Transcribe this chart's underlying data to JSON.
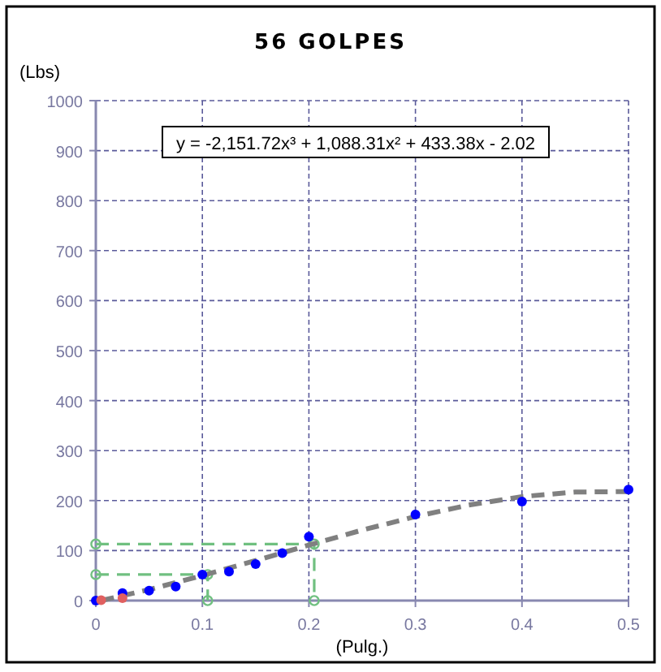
{
  "chart_data": {
    "type": "scatter",
    "title": "56 GOLPES",
    "xlabel": "(Pulg.)",
    "ylabel": "(Lbs)",
    "annotations": [
      "y = -2,151.72x³ + 1,088.31x² + 433.38x - 2.02"
    ],
    "xlim": [
      0,
      0.5
    ],
    "xticks": [
      0,
      0.1,
      0.2,
      0.3,
      0.4,
      0.5
    ],
    "ylim": [
      0,
      1000
    ],
    "yticks": [
      0,
      100,
      200,
      300,
      400,
      500,
      600,
      700,
      800,
      900,
      1000
    ],
    "grid": true,
    "series": [
      {
        "type": "line",
        "color": "#70c080",
        "line_style": "dashed",
        "marker": "circle",
        "x": [
          0,
          0.205,
          0.205
        ],
        "values": [
          113,
          113,
          0
        ]
      },
      {
        "type": "line",
        "color": "#70c080",
        "line_style": "dashed",
        "marker": "circle",
        "x": [
          0,
          0.105,
          0.105
        ],
        "values": [
          52,
          52,
          0
        ]
      },
      {
        "type": "line",
        "color": "#808080",
        "line_style": "dashed",
        "marker": "none",
        "x": [
          0.005,
          0.05,
          0.1,
          0.15,
          0.2,
          0.25,
          0.3,
          0.35,
          0.4,
          0.45,
          0.5
        ],
        "values": [
          0,
          22,
          50,
          80,
          111,
          141,
          168,
          191,
          208,
          217,
          218
        ]
      },
      {
        "color": "#0000ff",
        "marker": "circle",
        "x": [
          0,
          0.025,
          0.05,
          0.075,
          0.1,
          0.125,
          0.15,
          0.175,
          0.2,
          0.3,
          0.4,
          0.5
        ],
        "values": [
          0,
          15,
          20,
          28,
          52,
          58,
          73,
          95,
          128,
          172,
          198,
          222
        ]
      },
      {
        "color": "#e06060",
        "marker": "circle",
        "x": [
          0.005,
          0.025
        ],
        "values": [
          1,
          5
        ]
      }
    ]
  }
}
